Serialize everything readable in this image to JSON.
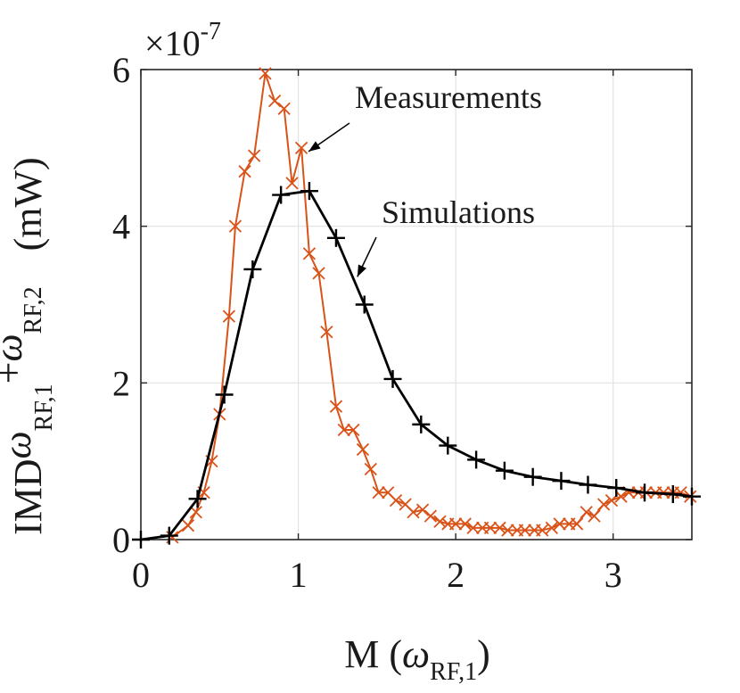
{
  "chart_data": {
    "type": "line",
    "title": "",
    "xlabel": {
      "main": "M (",
      "symbol": "ω",
      "subscript": "RF,1",
      "close": ")"
    },
    "ylabel": {
      "prefix": "IMD",
      "sym1": "ω",
      "sub1": "RF,1",
      "plus": "+",
      "sym2": "ω",
      "sub2": "RF,2",
      "unit": "(mW)"
    },
    "exponent_label": {
      "times": "×",
      "base": "10",
      "power": "-7"
    },
    "xlim": [
      0,
      3.5
    ],
    "ylim": [
      0,
      6
    ],
    "xticks": [
      0,
      1,
      2,
      3
    ],
    "xtick_labels": [
      "0",
      "1",
      "2",
      "3"
    ],
    "yticks": [
      0,
      2,
      4,
      6
    ],
    "ytick_labels": [
      "0",
      "2",
      "4",
      "6"
    ],
    "grid": true,
    "series": [
      {
        "name": "Simulations",
        "color": "#000000",
        "marker": "+",
        "x": [
          0,
          0.18,
          0.36,
          0.53,
          0.71,
          0.89,
          1.07,
          1.24,
          1.42,
          1.6,
          1.78,
          1.95,
          2.13,
          2.31,
          2.49,
          2.67,
          2.84,
          3.02,
          3.2,
          3.38,
          3.5
        ],
        "y": [
          0,
          0.05,
          0.52,
          1.85,
          3.45,
          4.4,
          4.45,
          3.85,
          3.0,
          2.05,
          1.47,
          1.2,
          1.02,
          0.88,
          0.8,
          0.75,
          0.7,
          0.66,
          0.6,
          0.58,
          0.55
        ]
      },
      {
        "name": "Measurements",
        "color": "#d95319",
        "marker": "x",
        "x": [
          0.2,
          0.3,
          0.35,
          0.4,
          0.45,
          0.5,
          0.56,
          0.6,
          0.66,
          0.72,
          0.79,
          0.85,
          0.91,
          0.96,
          1.02,
          1.07,
          1.13,
          1.18,
          1.24,
          1.29,
          1.35,
          1.41,
          1.46,
          1.51,
          1.57,
          1.62,
          1.68,
          1.73,
          1.79,
          1.84,
          1.9,
          1.95,
          2.0,
          2.06,
          2.11,
          2.17,
          2.22,
          2.28,
          2.33,
          2.39,
          2.44,
          2.5,
          2.55,
          2.61,
          2.66,
          2.72,
          2.77,
          2.83,
          2.88,
          2.94,
          2.99,
          3.05,
          3.1,
          3.16,
          3.21,
          3.27,
          3.32,
          3.38,
          3.43,
          3.49
        ],
        "y": [
          0.03,
          0.18,
          0.35,
          0.6,
          1.0,
          1.6,
          2.85,
          4.0,
          4.7,
          4.9,
          5.95,
          5.6,
          5.5,
          4.55,
          5.0,
          3.65,
          3.4,
          2.65,
          1.7,
          1.4,
          1.4,
          1.15,
          0.9,
          0.6,
          0.6,
          0.5,
          0.45,
          0.35,
          0.38,
          0.3,
          0.23,
          0.2,
          0.2,
          0.2,
          0.15,
          0.15,
          0.15,
          0.15,
          0.12,
          0.12,
          0.12,
          0.12,
          0.12,
          0.15,
          0.2,
          0.2,
          0.2,
          0.35,
          0.3,
          0.45,
          0.5,
          0.55,
          0.6,
          0.6,
          0.6,
          0.6,
          0.6,
          0.6,
          0.6,
          0.55
        ]
      }
    ],
    "annotations": [
      {
        "text": "Measurements",
        "target_series": "Measurements",
        "arrow_to_x": 1.02,
        "arrow_to_y": 5.0
      },
      {
        "text": "Simulations",
        "target_series": "Simulations",
        "arrow_to_x": 1.33,
        "arrow_to_y": 3.4
      }
    ]
  }
}
